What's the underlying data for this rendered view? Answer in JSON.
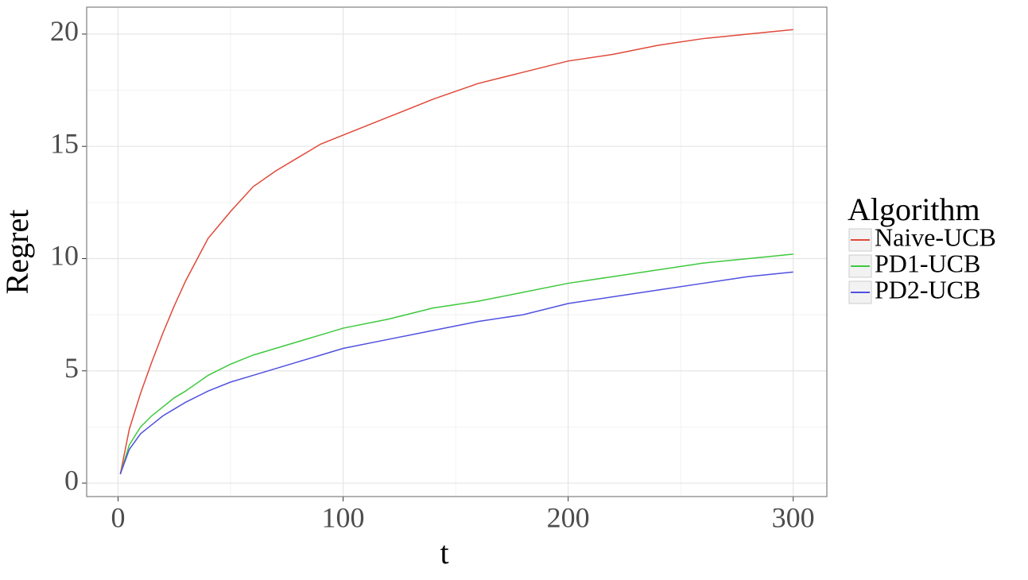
{
  "chart_data": {
    "type": "line",
    "x_label": "t",
    "y_label": "Regret",
    "legend_title": "Algorithm",
    "legend_position": "right",
    "x": [
      1,
      5,
      10,
      15,
      20,
      25,
      30,
      40,
      50,
      60,
      70,
      80,
      90,
      100,
      120,
      140,
      160,
      180,
      200,
      220,
      240,
      260,
      280,
      300
    ],
    "series": [
      {
        "name": "Naive-UCB",
        "color": "#e0493a",
        "values": [
          0.4,
          2.4,
          4.0,
          5.4,
          6.7,
          7.9,
          9.0,
          10.9,
          12.1,
          13.2,
          13.9,
          14.5,
          15.1,
          15.5,
          16.3,
          17.1,
          17.8,
          18.3,
          18.8,
          19.1,
          19.5,
          19.8,
          20.0,
          20.2
        ]
      },
      {
        "name": "PD1-UCB",
        "color": "#3ec93e",
        "values": [
          0.4,
          1.7,
          2.5,
          3.0,
          3.4,
          3.8,
          4.1,
          4.8,
          5.3,
          5.7,
          6.0,
          6.3,
          6.6,
          6.9,
          7.3,
          7.8,
          8.1,
          8.5,
          8.9,
          9.2,
          9.5,
          9.8,
          10.0,
          10.2
        ]
      },
      {
        "name": "PD2-UCB",
        "color": "#5050e0",
        "values": [
          0.4,
          1.5,
          2.2,
          2.6,
          3.0,
          3.3,
          3.6,
          4.1,
          4.5,
          4.8,
          5.1,
          5.4,
          5.7,
          6.0,
          6.4,
          6.8,
          7.2,
          7.5,
          8.0,
          8.3,
          8.6,
          8.9,
          9.2,
          9.4
        ]
      }
    ],
    "xlim": [
      -13.95,
      314.95
    ],
    "ylim": [
      -0.6,
      21.2
    ],
    "xticks": [
      0,
      100,
      200,
      300
    ],
    "yticks": [
      0,
      5,
      10,
      15,
      20
    ],
    "minor_xticks": [
      50,
      150,
      250
    ],
    "minor_yticks": [
      2.5,
      7.5,
      12.5,
      17.5
    ],
    "grid": true
  }
}
